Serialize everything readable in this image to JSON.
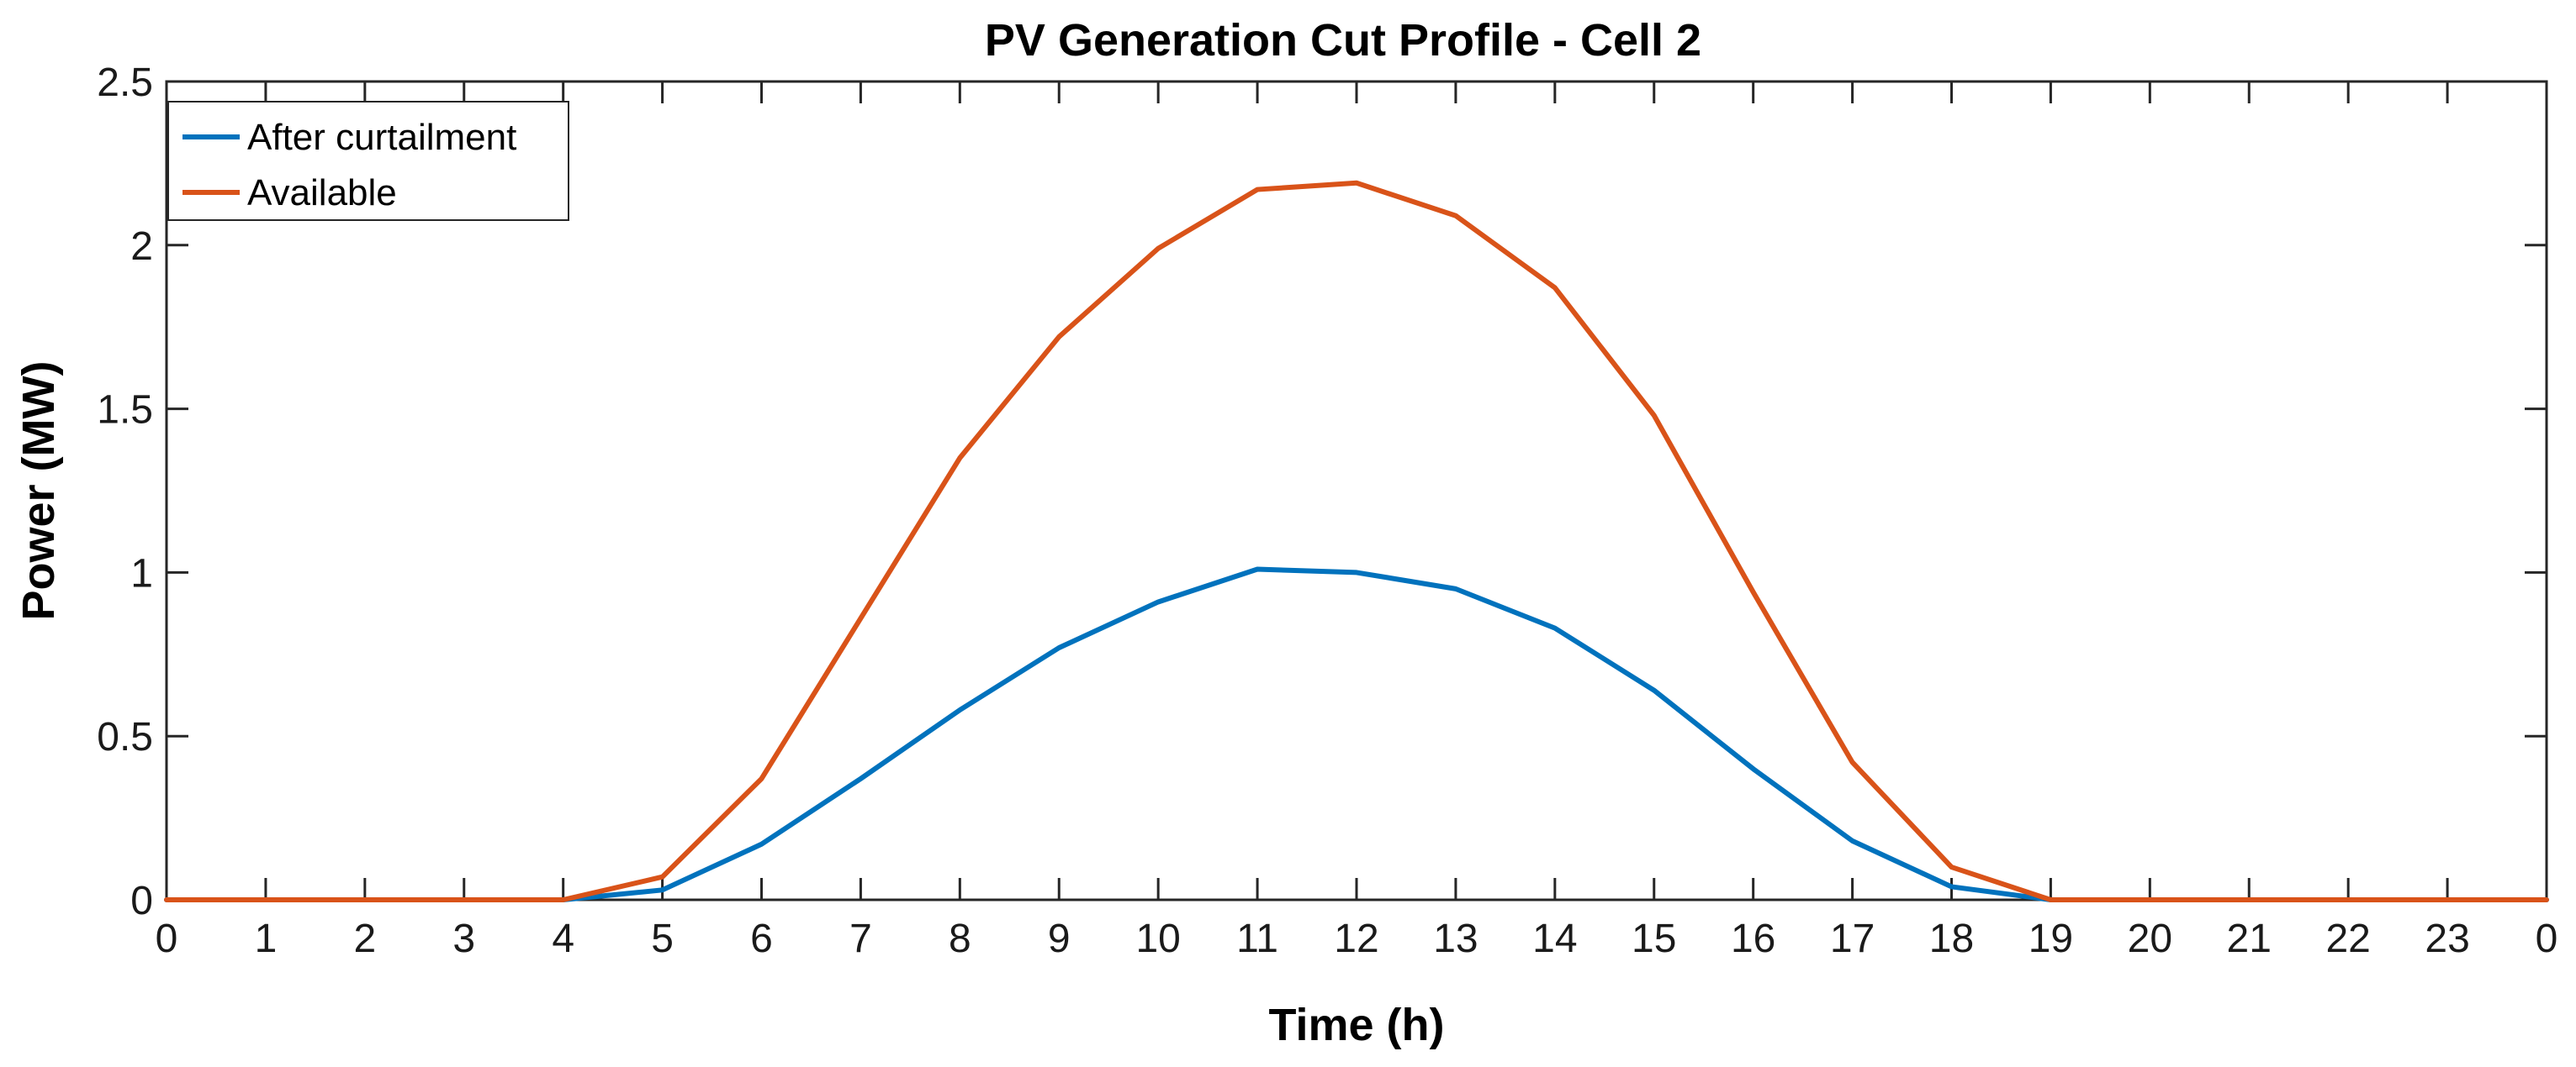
{
  "chart_data": {
    "type": "line",
    "title": "PV Generation Cut Profile - Cell 2",
    "xlabel": "Time (h)",
    "ylabel": "Power (MW)",
    "xlim": [
      0,
      24
    ],
    "ylim": [
      0,
      2.5
    ],
    "x_ticks": [
      0,
      1,
      2,
      3,
      4,
      5,
      6,
      7,
      8,
      9,
      10,
      11,
      12,
      13,
      14,
      15,
      16,
      17,
      18,
      19,
      20,
      21,
      22,
      23,
      24
    ],
    "x_tick_labels": [
      "0",
      "1",
      "2",
      "3",
      "4",
      "5",
      "6",
      "7",
      "8",
      "9",
      "10",
      "11",
      "12",
      "13",
      "14",
      "15",
      "16",
      "17",
      "18",
      "19",
      "20",
      "21",
      "22",
      "23",
      "0"
    ],
    "y_ticks": [
      0,
      0.5,
      1,
      1.5,
      2,
      2.5
    ],
    "y_tick_labels": [
      "0",
      "0.5",
      "1",
      "1.5",
      "2",
      "2.5"
    ],
    "grid": false,
    "legend_position": "top-left",
    "x": [
      0,
      1,
      2,
      3,
      4,
      5,
      6,
      7,
      8,
      9,
      10,
      11,
      12,
      13,
      14,
      15,
      16,
      17,
      18,
      19,
      20,
      21,
      22,
      23,
      24
    ],
    "series": [
      {
        "name": "After curtailment",
        "color": "#0072BD",
        "values": [
          0,
          0,
          0,
          0,
          0,
          0.03,
          0.17,
          0.37,
          0.58,
          0.77,
          0.91,
          1.01,
          1.0,
          0.95,
          0.83,
          0.64,
          0.4,
          0.18,
          0.04,
          0,
          0,
          0,
          0,
          0,
          0
        ]
      },
      {
        "name": "Available",
        "color": "#D95319",
        "values": [
          0,
          0,
          0,
          0,
          0,
          0.07,
          0.37,
          0.86,
          1.35,
          1.72,
          1.99,
          2.17,
          2.19,
          2.09,
          1.87,
          1.48,
          0.94,
          0.42,
          0.1,
          0,
          0,
          0,
          0,
          0,
          0
        ]
      }
    ]
  }
}
